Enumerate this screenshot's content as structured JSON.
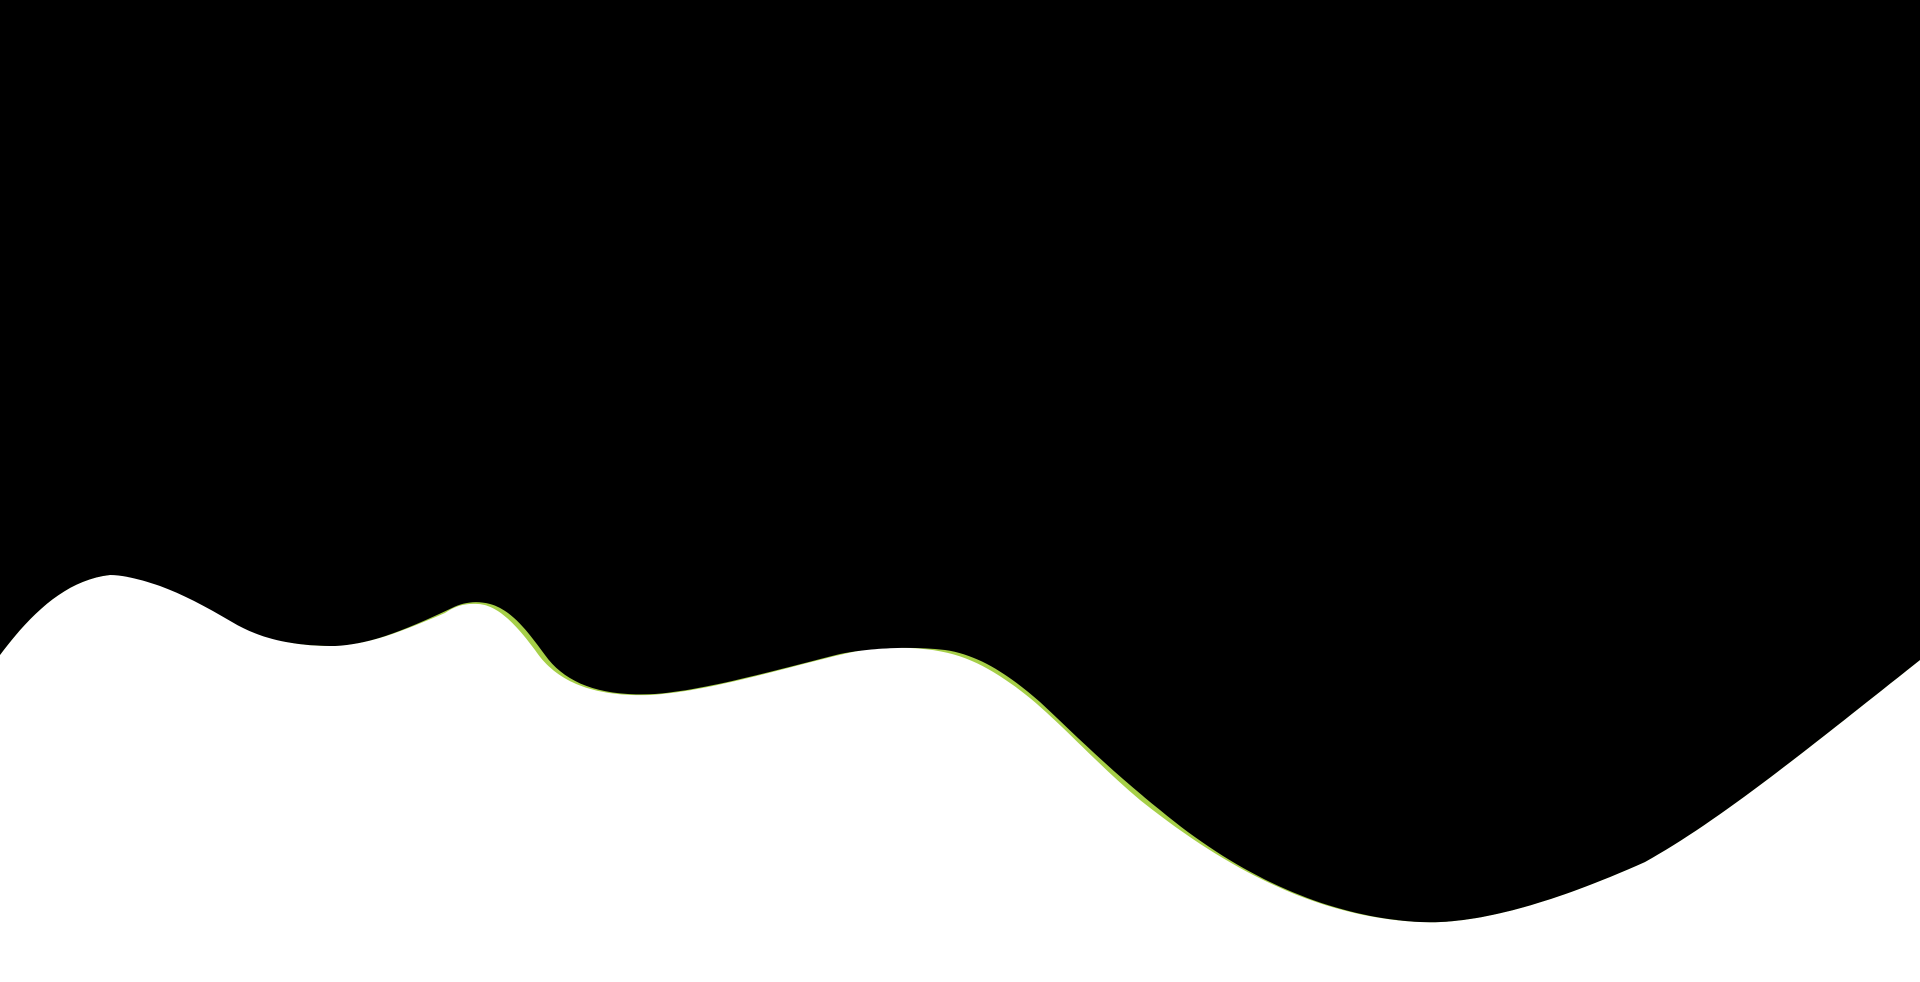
{
  "colors": {
    "background": "#ffffff",
    "dark_fill": "#000000",
    "accent_stripe": "#a6cf48"
  }
}
